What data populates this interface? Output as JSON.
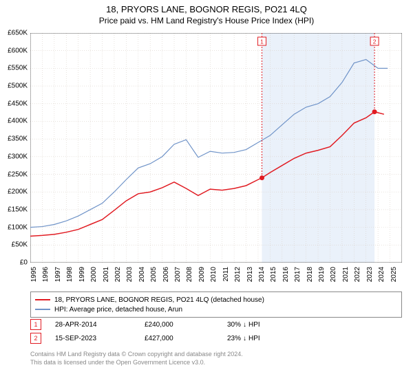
{
  "title": {
    "main": "18, PRYORS LANE, BOGNOR REGIS, PO21 4LQ",
    "sub": "Price paid vs. HM Land Registry's House Price Index (HPI)",
    "main_fontsize": 13,
    "sub_fontsize": 12
  },
  "chart": {
    "type": "line",
    "background_color": "#ffffff",
    "grid_color": "#d9d0c7",
    "grid_dash": "1,2",
    "y_axis": {
      "min": 0,
      "max": 650000,
      "tick_step": 50000,
      "labels": [
        "£0",
        "£50K",
        "£100K",
        "£150K",
        "£200K",
        "£250K",
        "£300K",
        "£350K",
        "£400K",
        "£450K",
        "£500K",
        "£550K",
        "£600K",
        "£650K"
      ],
      "label_fontsize": 10,
      "label_color": "#000000"
    },
    "x_axis": {
      "min": 1995,
      "max": 2026,
      "ticks": [
        1995,
        1996,
        1997,
        1998,
        1999,
        2000,
        2001,
        2002,
        2003,
        2004,
        2005,
        2006,
        2007,
        2008,
        2009,
        2010,
        2011,
        2012,
        2013,
        2014,
        2015,
        2016,
        2017,
        2018,
        2019,
        2020,
        2021,
        2022,
        2023,
        2024,
        2025
      ],
      "label_fontsize": 10,
      "label_color": "#000000",
      "label_rotation": -90
    },
    "shaded_region": {
      "x_start": 2014.32,
      "x_end": 2023.71,
      "fill": "#eaf1fa"
    },
    "series": [
      {
        "name": "price_paid",
        "color": "#e11b22",
        "line_width": 1.5,
        "points": [
          [
            1995,
            75000
          ],
          [
            1996,
            77000
          ],
          [
            1997,
            80000
          ],
          [
            1998,
            86000
          ],
          [
            1999,
            94000
          ],
          [
            2000,
            108000
          ],
          [
            2001,
            122000
          ],
          [
            2002,
            148000
          ],
          [
            2003,
            175000
          ],
          [
            2004,
            195000
          ],
          [
            2005,
            200000
          ],
          [
            2006,
            212000
          ],
          [
            2007,
            228000
          ],
          [
            2008,
            210000
          ],
          [
            2009,
            190000
          ],
          [
            2010,
            208000
          ],
          [
            2011,
            205000
          ],
          [
            2012,
            210000
          ],
          [
            2013,
            218000
          ],
          [
            2014,
            235000
          ],
          [
            2014.32,
            240000
          ],
          [
            2015,
            255000
          ],
          [
            2016,
            275000
          ],
          [
            2017,
            295000
          ],
          [
            2018,
            310000
          ],
          [
            2019,
            318000
          ],
          [
            2020,
            328000
          ],
          [
            2021,
            360000
          ],
          [
            2022,
            395000
          ],
          [
            2023,
            410000
          ],
          [
            2023.71,
            427000
          ],
          [
            2024.5,
            420000
          ]
        ],
        "markers": [
          {
            "x": 2014.32,
            "y": 240000,
            "label": "1",
            "marker_color": "#e11b22",
            "line_dash": "2,2"
          },
          {
            "x": 2023.71,
            "y": 427000,
            "label": "2",
            "marker_color": "#e11b22",
            "line_dash": "2,2"
          }
        ]
      },
      {
        "name": "hpi",
        "color": "#6f93c8",
        "line_width": 1.2,
        "points": [
          [
            1995,
            100000
          ],
          [
            1996,
            102000
          ],
          [
            1997,
            108000
          ],
          [
            1998,
            118000
          ],
          [
            1999,
            132000
          ],
          [
            2000,
            150000
          ],
          [
            2001,
            168000
          ],
          [
            2002,
            200000
          ],
          [
            2003,
            235000
          ],
          [
            2004,
            268000
          ],
          [
            2005,
            280000
          ],
          [
            2006,
            300000
          ],
          [
            2007,
            335000
          ],
          [
            2008,
            348000
          ],
          [
            2009,
            298000
          ],
          [
            2010,
            315000
          ],
          [
            2011,
            310000
          ],
          [
            2012,
            312000
          ],
          [
            2013,
            320000
          ],
          [
            2014,
            340000
          ],
          [
            2015,
            360000
          ],
          [
            2016,
            390000
          ],
          [
            2017,
            420000
          ],
          [
            2018,
            440000
          ],
          [
            2019,
            450000
          ],
          [
            2020,
            470000
          ],
          [
            2021,
            510000
          ],
          [
            2022,
            565000
          ],
          [
            2023,
            575000
          ],
          [
            2024,
            550000
          ],
          [
            2024.8,
            550000
          ]
        ]
      }
    ],
    "chart_marker_boxes": [
      {
        "label": "1",
        "x": 2014.32,
        "top_offset": 6,
        "color": "#e11b22"
      },
      {
        "label": "2",
        "x": 2023.71,
        "top_offset": 6,
        "color": "#e11b22"
      }
    ]
  },
  "legend": {
    "border_color": "#888888",
    "fontsize": 10,
    "items": [
      {
        "color": "#e11b22",
        "label": "18, PRYORS LANE, BOGNOR REGIS, PO21 4LQ (detached house)"
      },
      {
        "color": "#6f93c8",
        "label": "HPI: Average price, detached house, Arun"
      }
    ]
  },
  "sales": [
    {
      "num": "1",
      "num_color": "#e11b22",
      "date": "28-APR-2014",
      "price": "£240,000",
      "delta_pct": "30%",
      "delta_dir": "↓",
      "delta_label": "HPI"
    },
    {
      "num": "2",
      "num_color": "#e11b22",
      "date": "15-SEP-2023",
      "price": "£427,000",
      "delta_pct": "23%",
      "delta_dir": "↓",
      "delta_label": "HPI"
    }
  ],
  "footer": {
    "line1": "Contains HM Land Registry data © Crown copyright and database right 2024.",
    "line2": "This data is licensed under the Open Government Licence v3.0.",
    "color": "#888888",
    "fontsize": 9
  }
}
